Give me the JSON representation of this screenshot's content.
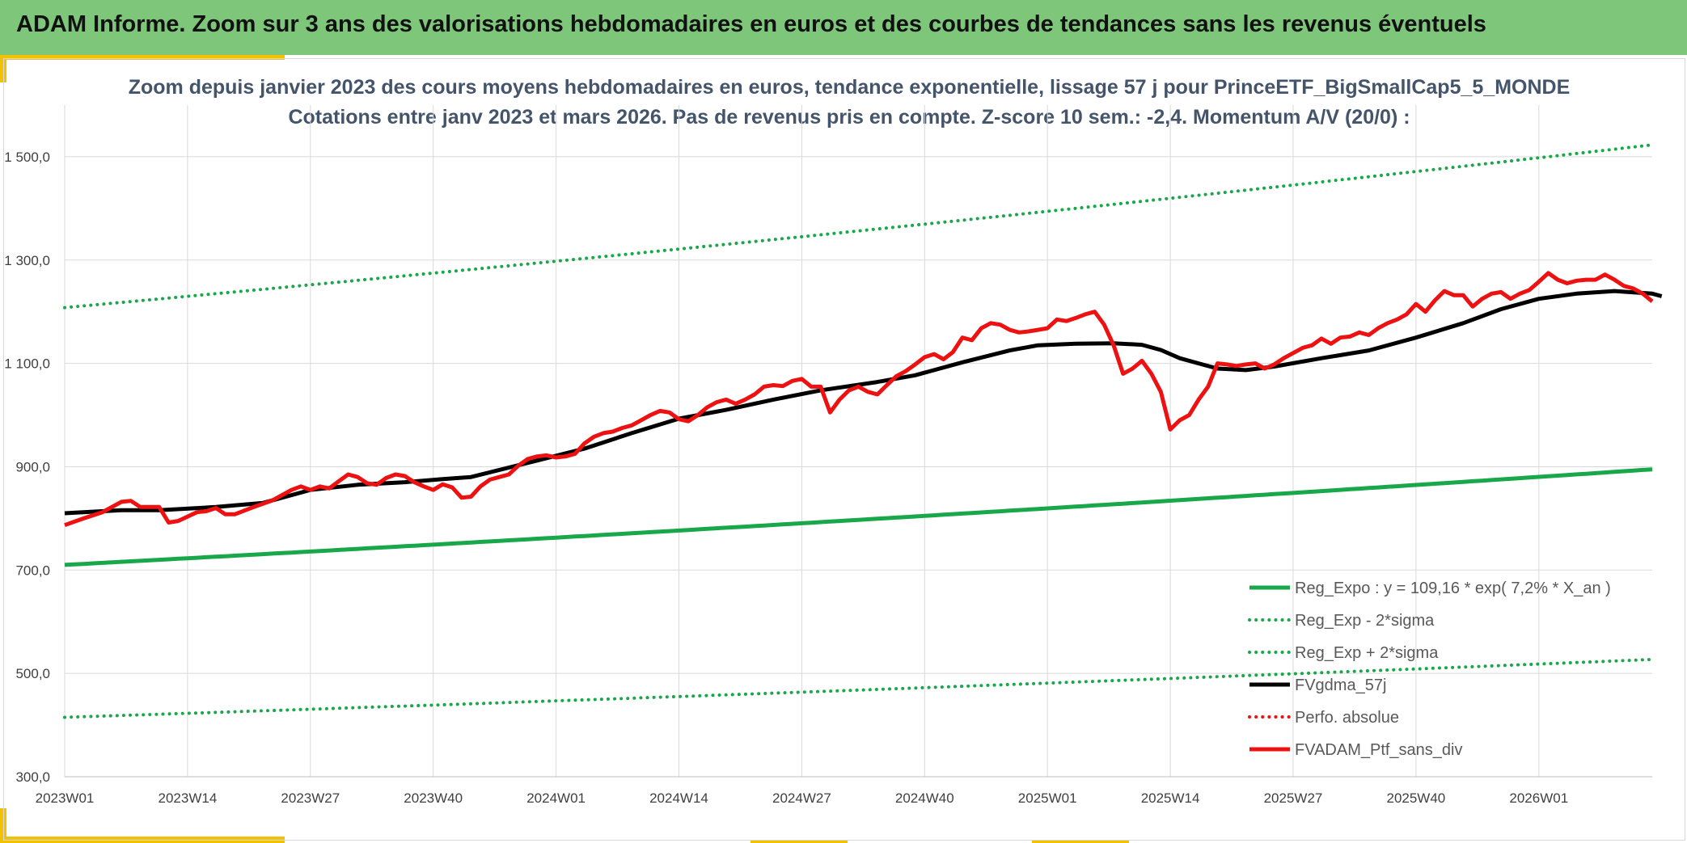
{
  "header": {
    "title": "ADAM Informe. Zoom sur 3 ans des valorisations hebdomadaires en euros et des courbes de tendances sans les revenus éventuels"
  },
  "colors": {
    "banner": "#7dc67a",
    "accent_yellow": "#f2c200",
    "trend_green": "#18a84a",
    "price_red": "#ee1111",
    "smooth_black": "#000000"
  },
  "chart_data": {
    "type": "line",
    "title_line1": "Zoom depuis janvier 2023 des cours moyens hebdomadaires en euros, tendance exponentielle, lissage 57 j pour PrinceETF_BigSmallCap5_5_MONDE",
    "title_line2": "Cotations entre janv 2023 et mars 2026. Pas de revenus pris en compte. Z-score 10 sem.: -2,4. Momentum A/V (20/0) :",
    "ylim": [
      300,
      1600
    ],
    "yticks": [
      300,
      500,
      700,
      900,
      1100,
      1300,
      1500
    ],
    "ytick_labels": [
      "300,0",
      "500,0",
      "700,0",
      "900,0",
      "1 100,0",
      "1 300,0",
      "1 500,0"
    ],
    "xtick_labels": [
      "2023W01",
      "2023W14",
      "2023W27",
      "2023W40",
      "2024W01",
      "2024W14",
      "2024W27",
      "2024W40",
      "2025W01",
      "2025W14",
      "2025W27",
      "2025W40",
      "2026W01"
    ],
    "xtick_index": [
      0,
      13,
      26,
      39,
      52,
      65,
      78,
      91,
      104,
      117,
      130,
      143,
      156
    ],
    "n_weeks": 169,
    "grid": true,
    "legend_position": "bottom-right",
    "series": [
      {
        "name": "Reg_Expo : y = 109,16 * exp( 7,2% *  X_an )",
        "style": "solid-green",
        "start": 710,
        "end": 895
      },
      {
        "name": "Reg_Exp - 2*sigma",
        "style": "dotted-green",
        "start": 415,
        "end": 527
      },
      {
        "name": "Reg_Exp + 2*sigma",
        "style": "dotted-green",
        "start": 1208,
        "end": 1523
      },
      {
        "name": "FVgdma_57j",
        "style": "solid-black",
        "points": [
          [
            0,
            810
          ],
          [
            6,
            816
          ],
          [
            10,
            816
          ],
          [
            16,
            822
          ],
          [
            21,
            830
          ],
          [
            26,
            855
          ],
          [
            31,
            865
          ],
          [
            36,
            870
          ],
          [
            40,
            876
          ],
          [
            43,
            880
          ],
          [
            50,
            912
          ],
          [
            55,
            935
          ],
          [
            60,
            965
          ],
          [
            65,
            993
          ],
          [
            70,
            1010
          ],
          [
            75,
            1030
          ],
          [
            80,
            1048
          ],
          [
            86,
            1064
          ],
          [
            90,
            1077
          ],
          [
            95,
            1102
          ],
          [
            100,
            1125
          ],
          [
            103,
            1135
          ],
          [
            107,
            1138
          ],
          [
            111,
            1139
          ],
          [
            114,
            1136
          ],
          [
            116,
            1126
          ],
          [
            118,
            1110
          ],
          [
            120,
            1100
          ],
          [
            122,
            1090
          ],
          [
            125,
            1087
          ],
          [
            128,
            1094
          ],
          [
            133,
            1110
          ],
          [
            138,
            1125
          ],
          [
            143,
            1150
          ],
          [
            148,
            1178
          ],
          [
            152,
            1205
          ],
          [
            156,
            1225
          ],
          [
            160,
            1235
          ],
          [
            164,
            1240
          ],
          [
            168,
            1235
          ],
          [
            169,
            1230
          ]
        ]
      },
      {
        "name": "Perfo. absolue",
        "style": "dotted-red",
        "points": []
      },
      {
        "name": "FVADAM_Ptf_sans_div",
        "style": "solid-red",
        "points": [
          [
            0,
            787
          ],
          [
            2,
            800
          ],
          [
            4,
            812
          ],
          [
            6,
            832
          ],
          [
            7,
            834
          ],
          [
            8,
            822
          ],
          [
            10,
            822
          ],
          [
            11,
            792
          ],
          [
            12,
            795
          ],
          [
            14,
            812
          ],
          [
            15,
            814
          ],
          [
            16,
            820
          ],
          [
            17,
            808
          ],
          [
            18,
            808
          ],
          [
            20,
            822
          ],
          [
            22,
            835
          ],
          [
            24,
            855
          ],
          [
            25,
            862
          ],
          [
            26,
            855
          ],
          [
            27,
            862
          ],
          [
            28,
            858
          ],
          [
            29,
            872
          ],
          [
            30,
            885
          ],
          [
            31,
            880
          ],
          [
            32,
            868
          ],
          [
            33,
            865
          ],
          [
            34,
            878
          ],
          [
            35,
            885
          ],
          [
            36,
            882
          ],
          [
            37,
            870
          ],
          [
            38,
            862
          ],
          [
            39,
            855
          ],
          [
            40,
            866
          ],
          [
            41,
            860
          ],
          [
            42,
            840
          ],
          [
            43,
            842
          ],
          [
            44,
            862
          ],
          [
            45,
            875
          ],
          [
            46,
            880
          ],
          [
            47,
            885
          ],
          [
            48,
            902
          ],
          [
            49,
            915
          ],
          [
            50,
            920
          ],
          [
            51,
            922
          ],
          [
            52,
            918
          ],
          [
            53,
            920
          ],
          [
            54,
            925
          ],
          [
            55,
            945
          ],
          [
            56,
            958
          ],
          [
            57,
            965
          ],
          [
            58,
            968
          ],
          [
            59,
            975
          ],
          [
            60,
            980
          ],
          [
            61,
            990
          ],
          [
            62,
            1000
          ],
          [
            63,
            1008
          ],
          [
            64,
            1005
          ],
          [
            65,
            992
          ],
          [
            66,
            988
          ],
          [
            67,
            1000
          ],
          [
            68,
            1015
          ],
          [
            69,
            1025
          ],
          [
            70,
            1030
          ],
          [
            71,
            1022
          ],
          [
            72,
            1030
          ],
          [
            73,
            1040
          ],
          [
            74,
            1055
          ],
          [
            75,
            1058
          ],
          [
            76,
            1056
          ],
          [
            77,
            1066
          ],
          [
            78,
            1070
          ],
          [
            79,
            1055
          ],
          [
            80,
            1055
          ],
          [
            81,
            1005
          ],
          [
            82,
            1030
          ],
          [
            83,
            1048
          ],
          [
            84,
            1055
          ],
          [
            85,
            1045
          ],
          [
            86,
            1040
          ],
          [
            87,
            1058
          ],
          [
            88,
            1075
          ],
          [
            89,
            1085
          ],
          [
            90,
            1098
          ],
          [
            91,
            1112
          ],
          [
            92,
            1118
          ],
          [
            93,
            1108
          ],
          [
            94,
            1122
          ],
          [
            95,
            1150
          ],
          [
            96,
            1145
          ],
          [
            97,
            1168
          ],
          [
            98,
            1178
          ],
          [
            99,
            1175
          ],
          [
            100,
            1165
          ],
          [
            101,
            1160
          ],
          [
            102,
            1162
          ],
          [
            103,
            1165
          ],
          [
            104,
            1168
          ],
          [
            105,
            1185
          ],
          [
            106,
            1182
          ],
          [
            107,
            1188
          ],
          [
            108,
            1195
          ],
          [
            109,
            1200
          ],
          [
            110,
            1175
          ],
          [
            111,
            1135
          ],
          [
            112,
            1080
          ],
          [
            113,
            1090
          ],
          [
            114,
            1105
          ],
          [
            115,
            1080
          ],
          [
            116,
            1045
          ],
          [
            117,
            972
          ],
          [
            118,
            990
          ],
          [
            119,
            1000
          ],
          [
            120,
            1030
          ],
          [
            121,
            1055
          ],
          [
            122,
            1100
          ],
          [
            123,
            1098
          ],
          [
            124,
            1095
          ],
          [
            125,
            1098
          ],
          [
            126,
            1100
          ],
          [
            127,
            1090
          ],
          [
            128,
            1098
          ],
          [
            129,
            1110
          ],
          [
            130,
            1120
          ],
          [
            131,
            1130
          ],
          [
            132,
            1135
          ],
          [
            133,
            1148
          ],
          [
            134,
            1138
          ],
          [
            135,
            1150
          ],
          [
            136,
            1152
          ],
          [
            137,
            1160
          ],
          [
            138,
            1155
          ],
          [
            139,
            1168
          ],
          [
            140,
            1178
          ],
          [
            141,
            1185
          ],
          [
            142,
            1195
          ],
          [
            143,
            1215
          ],
          [
            144,
            1200
          ],
          [
            145,
            1222
          ],
          [
            146,
            1240
          ],
          [
            147,
            1232
          ],
          [
            148,
            1232
          ],
          [
            149,
            1210
          ],
          [
            150,
            1225
          ],
          [
            151,
            1235
          ],
          [
            152,
            1238
          ],
          [
            153,
            1225
          ],
          [
            154,
            1235
          ],
          [
            155,
            1242
          ],
          [
            156,
            1258
          ],
          [
            157,
            1275
          ],
          [
            158,
            1262
          ],
          [
            159,
            1255
          ],
          [
            160,
            1260
          ],
          [
            161,
            1262
          ],
          [
            162,
            1262
          ],
          [
            163,
            1272
          ],
          [
            164,
            1262
          ],
          [
            165,
            1250
          ],
          [
            166,
            1245
          ],
          [
            167,
            1235
          ],
          [
            168,
            1220
          ]
        ]
      }
    ]
  }
}
